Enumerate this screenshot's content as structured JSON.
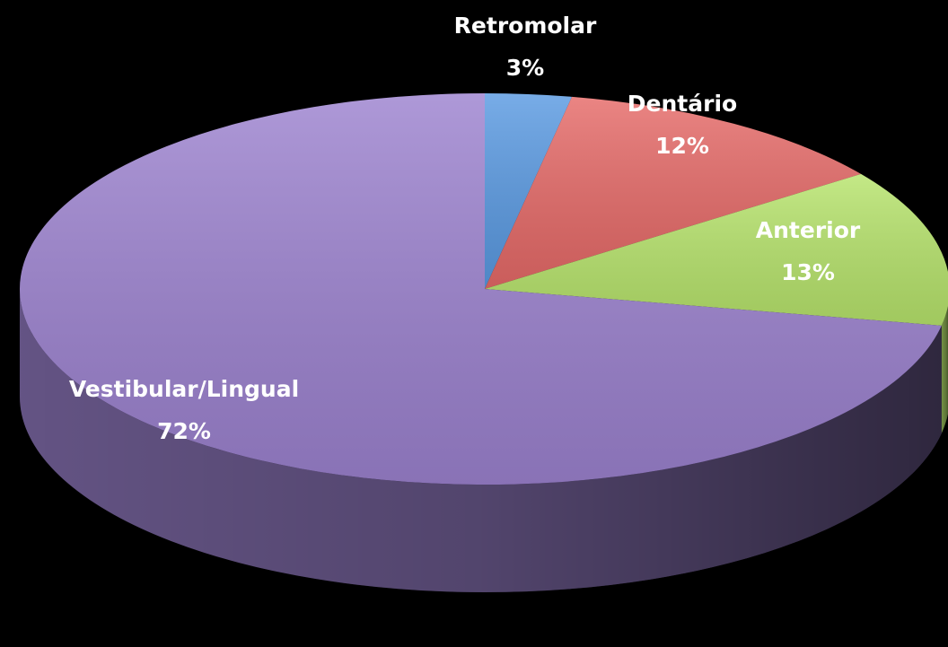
{
  "chart_data": {
    "type": "pie",
    "categories": [
      "Retromolar",
      "Dentário",
      "Anterior",
      "Vestibular/Lingual"
    ],
    "values": [
      3,
      12,
      13,
      72
    ],
    "value_labels": [
      "3%",
      "12%",
      "13%",
      "72%"
    ],
    "colors": [
      "#5a9ae2",
      "#e66a68",
      "#b7e46c",
      "#9c82cf"
    ]
  }
}
